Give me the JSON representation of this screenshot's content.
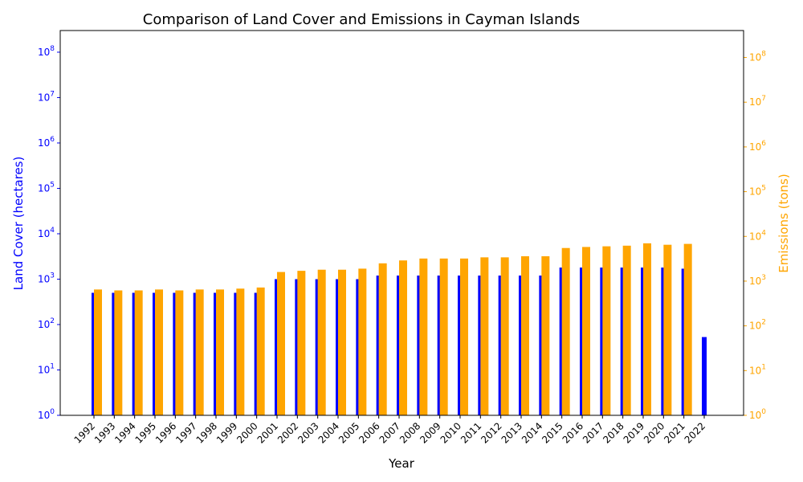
{
  "chart_data": {
    "type": "bar",
    "title": "Comparison of Land Cover and Emissions in Cayman Islands",
    "xlabel": "Year",
    "categories": [
      "1992",
      "1993",
      "1994",
      "1995",
      "1996",
      "1997",
      "1998",
      "1999",
      "2000",
      "2001",
      "2002",
      "2003",
      "2004",
      "2005",
      "2006",
      "2007",
      "2008",
      "2009",
      "2010",
      "2011",
      "2012",
      "2013",
      "2014",
      "2015",
      "2016",
      "2017",
      "2018",
      "2019",
      "2020",
      "2021",
      "2022"
    ],
    "axes": {
      "left": {
        "label": "Land Cover (hectares)",
        "scale": "log",
        "ylim": [
          1,
          300000000
        ],
        "ticks": [
          1,
          10,
          100,
          1000,
          10000,
          100000,
          1000000,
          10000000,
          100000000
        ],
        "color": "#0000ff"
      },
      "right": {
        "label": "Emissions (tons)",
        "scale": "log",
        "ylim": [
          1,
          400000000
        ],
        "ticks": [
          1,
          10,
          100,
          1000,
          10000,
          100000,
          1000000,
          10000000,
          100000000
        ],
        "color": "#ffa500"
      }
    },
    "series": [
      {
        "axis": "left",
        "color": "#0000ff",
        "values": [
          500,
          500,
          500,
          500,
          500,
          500,
          500,
          500,
          500,
          1000,
          1000,
          1000,
          1000,
          1000,
          1200,
          1200,
          1200,
          1200,
          1200,
          1200,
          1200,
          1200,
          1200,
          1800,
          1800,
          1800,
          1800,
          1800,
          1800,
          1700,
          53
        ]
      },
      {
        "axis": "right",
        "color": "#ffa500",
        "values": [
          650,
          620,
          620,
          650,
          620,
          650,
          650,
          680,
          720,
          1600,
          1700,
          1800,
          1800,
          1900,
          2500,
          2900,
          3200,
          3200,
          3200,
          3400,
          3400,
          3600,
          3600,
          5500,
          5800,
          6000,
          6200,
          7000,
          6500,
          6800,
          null
        ]
      }
    ],
    "grid": false
  }
}
